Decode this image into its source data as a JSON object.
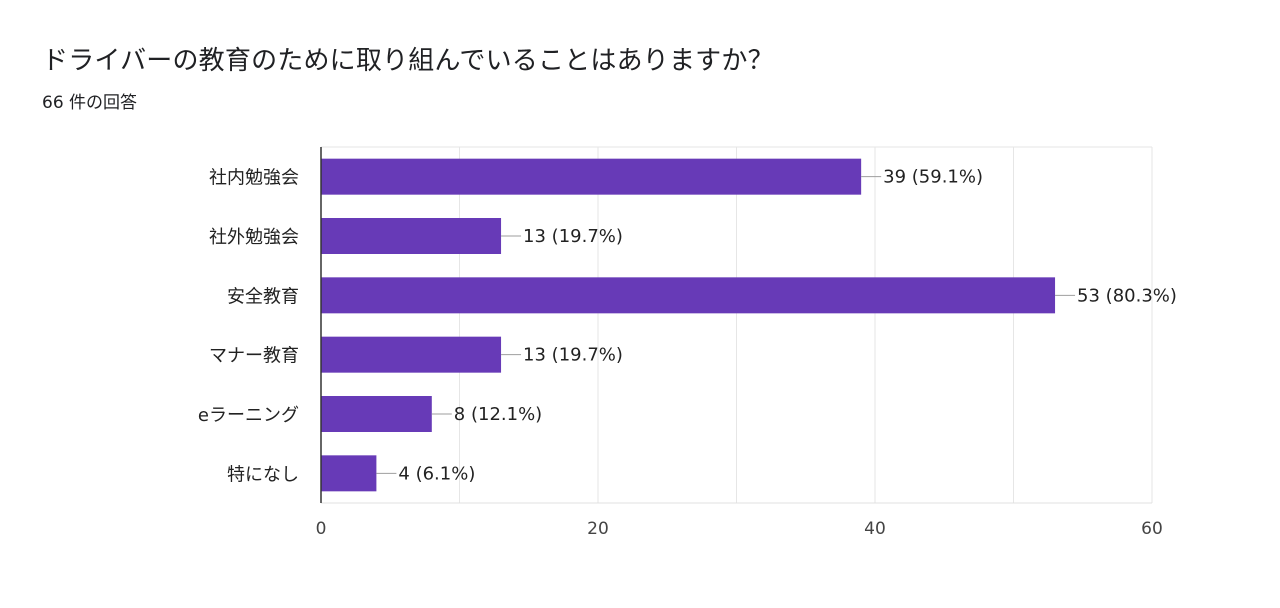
{
  "title": "ドライバーの教育のために取り組んでいることはありますか？",
  "subtitle": "66 件の回答",
  "chart_data": {
    "type": "bar",
    "orientation": "horizontal",
    "categories": [
      "社内勉強会",
      "社外勉強会",
      "安全教育",
      "マナー教育",
      "eラーニング",
      "特になし"
    ],
    "values": [
      39,
      13,
      53,
      13,
      8,
      4
    ],
    "data_labels": [
      "39 (59.1%)",
      "13 (19.7%)",
      "53 (80.3%)",
      "13 (19.7%)",
      "8 (12.1%)",
      "4 (6.1%)"
    ],
    "xlim": [
      0,
      60
    ],
    "xticks": [
      0,
      20,
      40,
      60
    ],
    "grid": true,
    "bar_color": "#673ab7"
  }
}
